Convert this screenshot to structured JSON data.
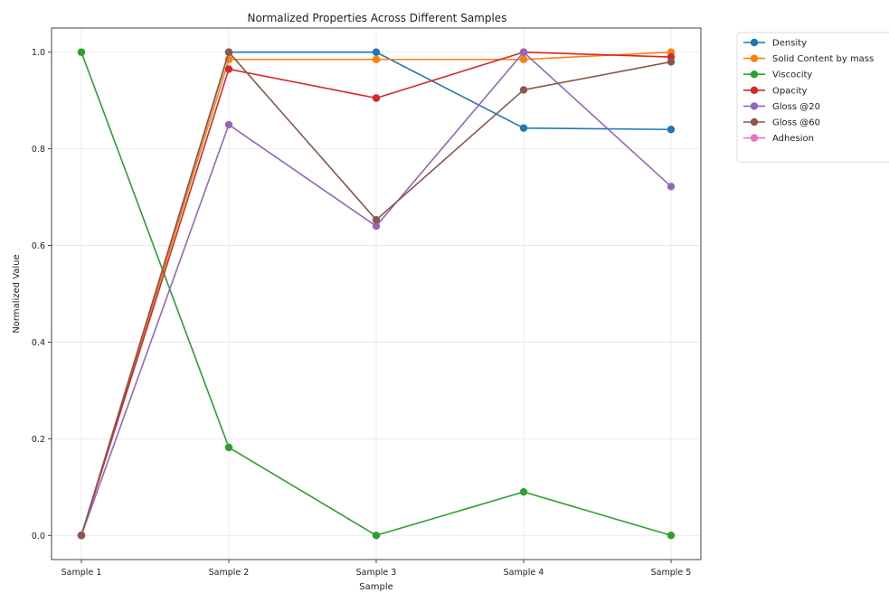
{
  "chart_data": {
    "type": "line",
    "title": "Normalized Properties Across Different Samples",
    "xlabel": "Sample",
    "ylabel": "Normalized Value",
    "categories": [
      "Sample 1",
      "Sample 2",
      "Sample 3",
      "Sample 4",
      "Sample 5"
    ],
    "ylim": [
      -0.05,
      1.05
    ],
    "yticks": [
      0.0,
      0.2,
      0.4,
      0.6,
      0.8,
      1.0
    ],
    "ytick_labels": [
      "0.0",
      "0.2",
      "0.4",
      "0.6",
      "0.8",
      "1.0"
    ],
    "grid": true,
    "legend_position": "outside-top-right",
    "series": [
      {
        "name": "Density",
        "color": "#1f77b4",
        "values": [
          0.0,
          1.0,
          1.0,
          0.843,
          0.84
        ]
      },
      {
        "name": "Solid Content by mass",
        "color": "#ff7f0e",
        "values": [
          0.0,
          0.985,
          0.985,
          0.985,
          1.0
        ]
      },
      {
        "name": "Viscocity",
        "color": "#2ca02c",
        "values": [
          1.0,
          0.182,
          0.0,
          0.09,
          0.0
        ]
      },
      {
        "name": "Opacity",
        "color": "#d62728",
        "values": [
          0.0,
          0.965,
          0.905,
          1.0,
          0.99
        ]
      },
      {
        "name": "Gloss @20",
        "color": "#9467bd",
        "values": [
          0.0,
          0.85,
          0.64,
          1.0,
          0.722
        ]
      },
      {
        "name": "Gloss @60",
        "color": "#8c564b",
        "values": [
          0.0,
          1.0,
          0.653,
          0.922,
          0.98
        ]
      },
      {
        "name": "Adhesion",
        "color": "#e377c2",
        "values": [
          null,
          null,
          null,
          null,
          null
        ]
      }
    ]
  }
}
